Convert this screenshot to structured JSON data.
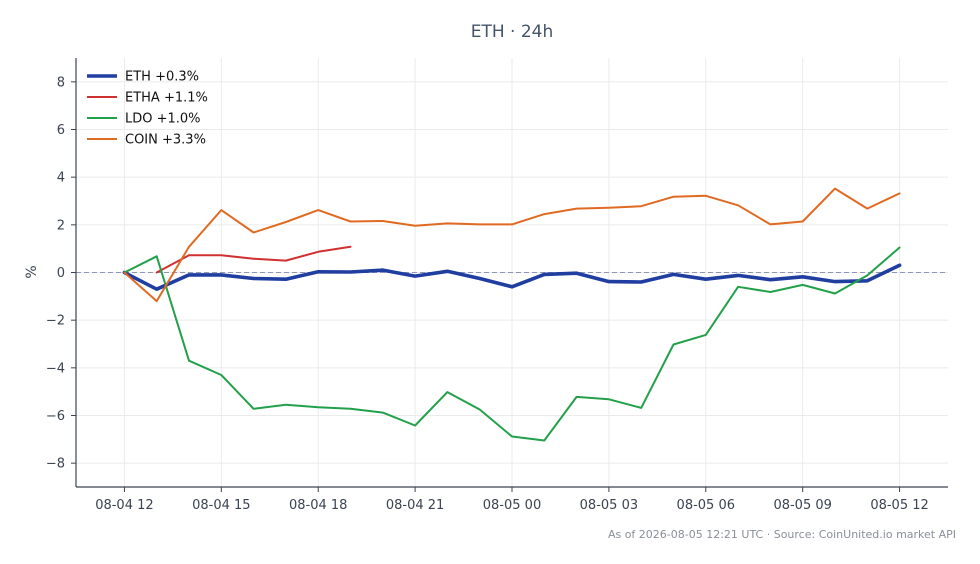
{
  "chart_data": {
    "type": "line",
    "title": "ETH · 24h",
    "ylabel": "%",
    "xlabel": "",
    "ylim": [
      -9,
      9
    ],
    "yticks": [
      -8,
      -6,
      -4,
      -2,
      0,
      2,
      4,
      6,
      8
    ],
    "xlim": [
      "08-04 10:30",
      "08-05 13:30"
    ],
    "xticks": [
      {
        "x": "08-04 12:00",
        "label": "08-04 12"
      },
      {
        "x": "08-04 15:00",
        "label": "08-04 15"
      },
      {
        "x": "08-04 18:00",
        "label": "08-04 18"
      },
      {
        "x": "08-04 21:00",
        "label": "08-04 21"
      },
      {
        "x": "08-05 00:00",
        "label": "08-05 00"
      },
      {
        "x": "08-05 03:00",
        "label": "08-05 03"
      },
      {
        "x": "08-05 06:00",
        "label": "08-05 06"
      },
      {
        "x": "08-05 09:00",
        "label": "08-05 09"
      },
      {
        "x": "08-05 12:00",
        "label": "08-05 12"
      }
    ],
    "grid": true,
    "zero_line": true,
    "legend_position": "top-left",
    "series": [
      {
        "name": "ETH +0.3%",
        "color": "#1f3ea0",
        "x": [
          "08-04 12:00",
          "08-04 13:00",
          "08-04 14:00",
          "08-04 15:00",
          "08-04 16:00",
          "08-04 17:00",
          "08-04 18:00",
          "08-04 19:00",
          "08-04 20:00",
          "08-04 21:00",
          "08-04 22:00",
          "08-04 23:00",
          "08-05 00:00",
          "08-05 01:00",
          "08-05 02:00",
          "08-05 03:00",
          "08-05 04:00",
          "08-05 05:00",
          "08-05 06:00",
          "08-05 07:00",
          "08-05 08:00",
          "08-05 09:00",
          "08-05 10:00",
          "08-05 11:00",
          "08-05 12:00"
        ],
        "values": [
          0.0,
          -0.7,
          -0.1,
          -0.1,
          -0.25,
          -0.28,
          0.03,
          0.02,
          0.1,
          -0.15,
          0.05,
          -0.25,
          -0.6,
          -0.08,
          -0.03,
          -0.38,
          -0.4,
          -0.08,
          -0.28,
          -0.12,
          -0.3,
          -0.18,
          -0.38,
          -0.35,
          0.3
        ]
      },
      {
        "name": "ETHA +1.1%",
        "color": "#d03030",
        "x": [
          "08-04 13:00",
          "08-04 14:00",
          "08-04 15:00",
          "08-04 16:00",
          "08-04 17:00",
          "08-04 18:00",
          "08-04 19:00"
        ],
        "values": [
          0.0,
          0.72,
          0.72,
          0.58,
          0.5,
          0.87,
          1.08
        ]
      },
      {
        "name": "LDO +1.0%",
        "color": "#22a04a",
        "x": [
          "08-04 12:00",
          "08-04 13:00",
          "08-04 14:00",
          "08-04 15:00",
          "08-04 16:00",
          "08-04 17:00",
          "08-04 18:00",
          "08-04 19:00",
          "08-04 20:00",
          "08-04 21:00",
          "08-04 22:00",
          "08-04 23:00",
          "08-05 00:00",
          "08-05 01:00",
          "08-05 02:00",
          "08-05 03:00",
          "08-05 04:00",
          "08-05 05:00",
          "08-05 06:00",
          "08-05 07:00",
          "08-05 08:00",
          "08-05 09:00",
          "08-05 10:00",
          "08-05 11:00",
          "08-05 12:00"
        ],
        "values": [
          0.0,
          0.68,
          -3.7,
          -4.3,
          -5.72,
          -5.55,
          -5.65,
          -5.72,
          -5.88,
          -6.42,
          -5.02,
          -5.75,
          -6.88,
          -7.05,
          -5.22,
          -5.32,
          -5.68,
          -3.02,
          -2.62,
          -0.6,
          -0.82,
          -0.52,
          -0.88,
          -0.12,
          1.05
        ]
      },
      {
        "name": "COIN +3.3%",
        "color": "#e06a22",
        "x": [
          "08-04 12:00",
          "08-04 13:00",
          "08-04 14:00",
          "08-04 15:00",
          "08-04 16:00",
          "08-04 17:00",
          "08-04 18:00",
          "08-04 19:00",
          "08-04 20:00",
          "08-04 21:00",
          "08-04 22:00",
          "08-04 23:00",
          "08-05 00:00",
          "08-05 01:00",
          "08-05 02:00",
          "08-05 03:00",
          "08-05 04:00",
          "08-05 05:00",
          "08-05 06:00",
          "08-05 07:00",
          "08-05 08:00",
          "08-05 09:00",
          "08-05 10:00",
          "08-05 11:00",
          "08-05 12:00"
        ],
        "values": [
          0.0,
          -1.2,
          1.08,
          2.62,
          1.68,
          2.12,
          2.62,
          2.14,
          2.16,
          1.96,
          2.06,
          2.02,
          2.02,
          2.45,
          2.68,
          2.72,
          2.78,
          3.18,
          3.22,
          2.82,
          2.02,
          2.14,
          3.52,
          2.68,
          3.32
        ]
      }
    ]
  },
  "footer": "As of 2026-08-05 12:21 UTC · Source: CoinUnited.io market API"
}
